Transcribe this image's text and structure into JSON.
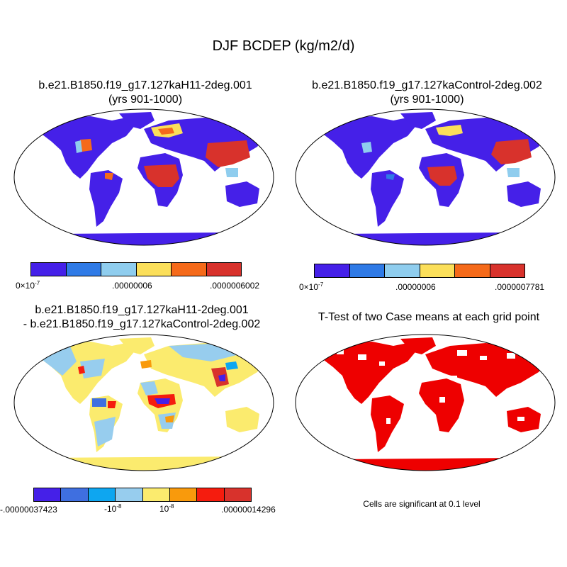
{
  "figure": {
    "title": "DJF BCDEP (kg/m2/d)"
  },
  "panels": {
    "top_left": {
      "title_line1": "b.e21.B1850.f19_g17.127kaH11-2deg.001",
      "title_line2": "(yrs 901-1000)",
      "colorbar": {
        "colors": [
          "#4520e8",
          "#2f7ae6",
          "#8fcdee",
          "#fbdf5a",
          "#f56a1a",
          "#d8322c"
        ],
        "labels": [
          "0×10",
          ".00000006",
          ".0000006002"
        ],
        "exponent": "-7"
      }
    },
    "top_right": {
      "title_line1": "b.e21.B1850.f19_g17.127kaControl-2deg.002",
      "title_line2": "(yrs 901-1000)",
      "colorbar": {
        "colors": [
          "#4520e8",
          "#2f7ae6",
          "#8fcdee",
          "#fbdf5a",
          "#f56a1a",
          "#d8322c"
        ],
        "labels": [
          "0×10",
          ".00000006",
          ".0000007781"
        ],
        "exponent": "-7"
      }
    },
    "bottom_left": {
      "title_line1": "b.e21.B1850.f19_g17.127kaH11-2deg.001",
      "title_line2": "- b.e21.B1850.f19_g17.127kaControl-2deg.002",
      "colorbar": {
        "colors": [
          "#4520e8",
          "#3f6fe0",
          "#0ea6f0",
          "#97cdee",
          "#fbeb6e",
          "#f99a0c",
          "#f51c0e",
          "#d8322c"
        ],
        "label_min": "-.00000037423",
        "label_neg_base": "-10",
        "label_neg_exp": "-8",
        "label_pos_base": "10",
        "label_pos_exp": "-8",
        "label_max": ".00000014296"
      }
    },
    "bottom_right": {
      "title": "T-Test of two Case means at each grid point",
      "note": "Cells are significant at 0.1 level",
      "significant_color": "#ee0000"
    }
  }
}
